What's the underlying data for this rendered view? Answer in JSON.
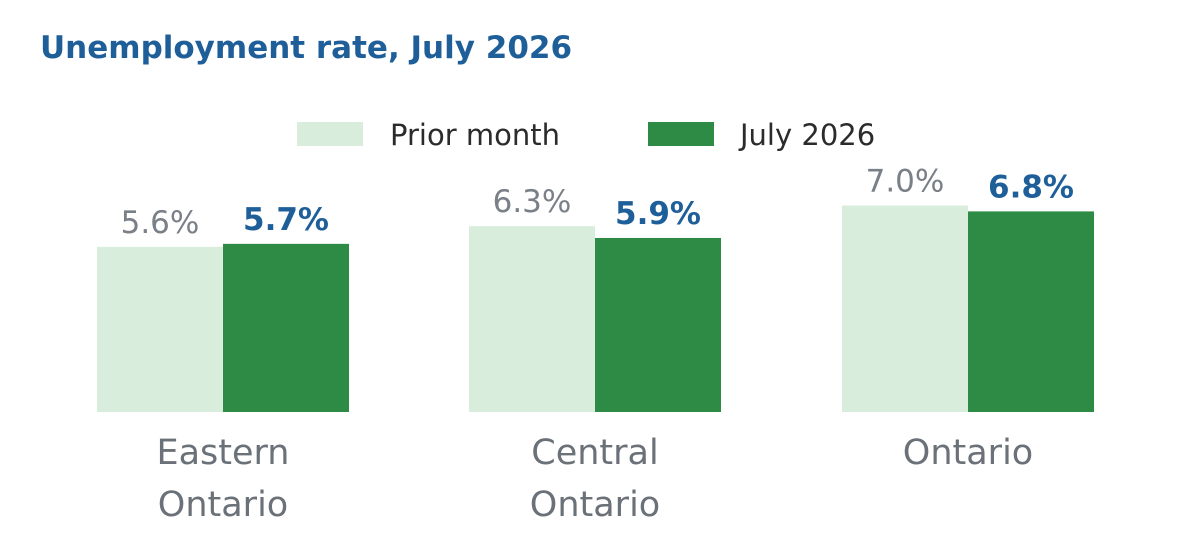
{
  "colors": {
    "title": "#1f5f99",
    "prior": "#d8eddc",
    "current": "#2e8b45",
    "prior_label": "#7a8088",
    "current_label": "#1f5f99",
    "category_label": "#6b7178",
    "legend_text": "#2b2b2b"
  },
  "chart_data": {
    "type": "bar",
    "title": "Unemployment rate, July 2026",
    "categories": [
      [
        "Eastern",
        "Ontario"
      ],
      [
        "Central",
        "Ontario"
      ],
      [
        "Ontario"
      ]
    ],
    "series": [
      {
        "name": "Prior month",
        "values": [
          5.6,
          6.3,
          7.0
        ],
        "labels": [
          "5.6%",
          "6.3%",
          "7.0%"
        ]
      },
      {
        "name": "July 2026",
        "values": [
          5.7,
          5.9,
          6.8
        ],
        "labels": [
          "5.7%",
          "5.9%",
          "6.8%"
        ]
      }
    ],
    "ylim": [
      0,
      7
    ],
    "grid": false,
    "legend_position": "top-center"
  }
}
